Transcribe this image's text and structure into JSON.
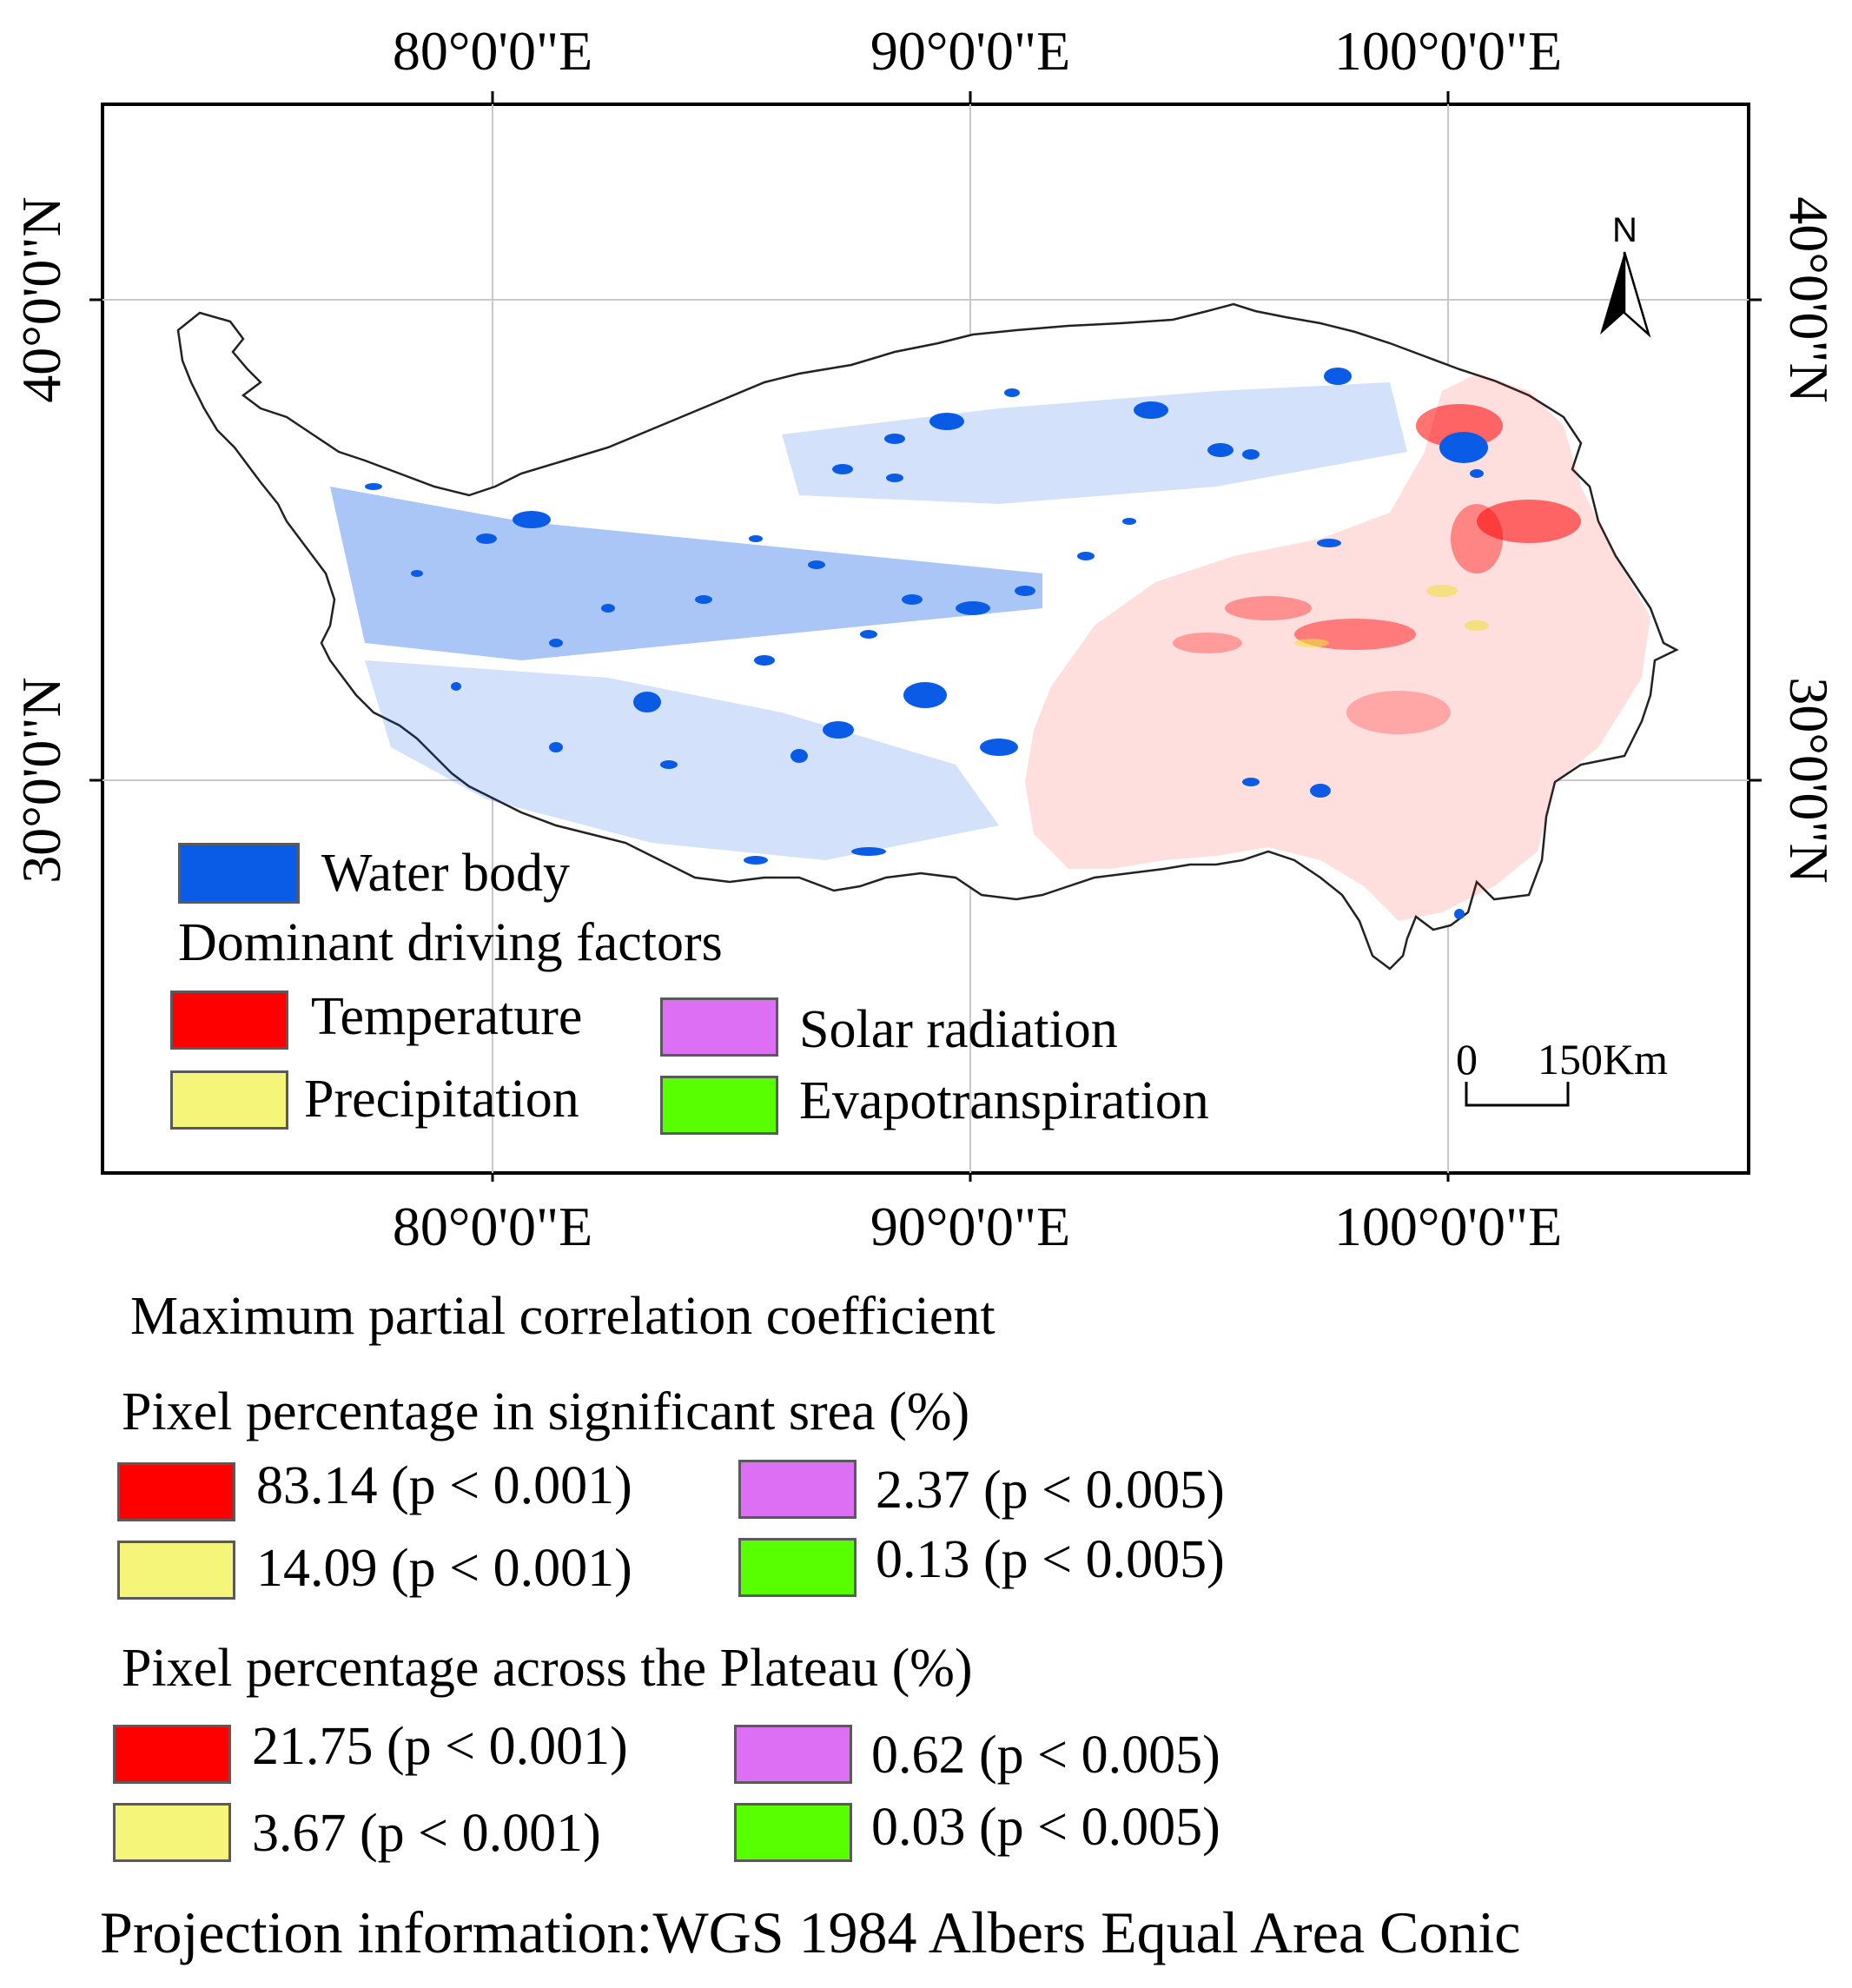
{
  "map": {
    "lon_labels": [
      "80°0'0\"E",
      "90°0'0\"E",
      "100°0'0\"E"
    ],
    "lat_labels": [
      "40°0'0\"N",
      "30°0'0\"N"
    ],
    "north_label": "N",
    "scale_start": "0",
    "scale_end": "150Km"
  },
  "legend": {
    "water_body": "Water body",
    "heading": "Dominant driving factors",
    "temperature": "Temperature",
    "precipitation": "Precipitation",
    "solar_radiation": "Solar radiation",
    "evapotranspiration": "Evapotranspiration"
  },
  "colors": {
    "water": "#0a5ce6",
    "temperature": "#ff0000",
    "precipitation": "#f5f57a",
    "solar_radiation": "#dd6ff5",
    "evapotranspiration": "#57ff00"
  },
  "stats": {
    "title": "Maximum partial correlation coefficient",
    "significant_heading": "Pixel percentage in significant srea (%)",
    "significant": {
      "temperature": "83.14 (p < 0.001)",
      "precipitation": "14.09 (p < 0.001)",
      "solar_radiation": "2.37 (p < 0.005)",
      "evapotranspiration": "0.13 (p < 0.005)"
    },
    "plateau_heading": "Pixel percentage across the Plateau (%)",
    "plateau": {
      "temperature": "21.75 (p < 0.001)",
      "precipitation": "3.67 (p < 0.001)",
      "solar_radiation": "0.62 (p < 0.005)",
      "evapotranspiration": "0.03 (p < 0.005)"
    }
  },
  "projection": "Projection information:WGS 1984 Albers Equal Area Conic"
}
